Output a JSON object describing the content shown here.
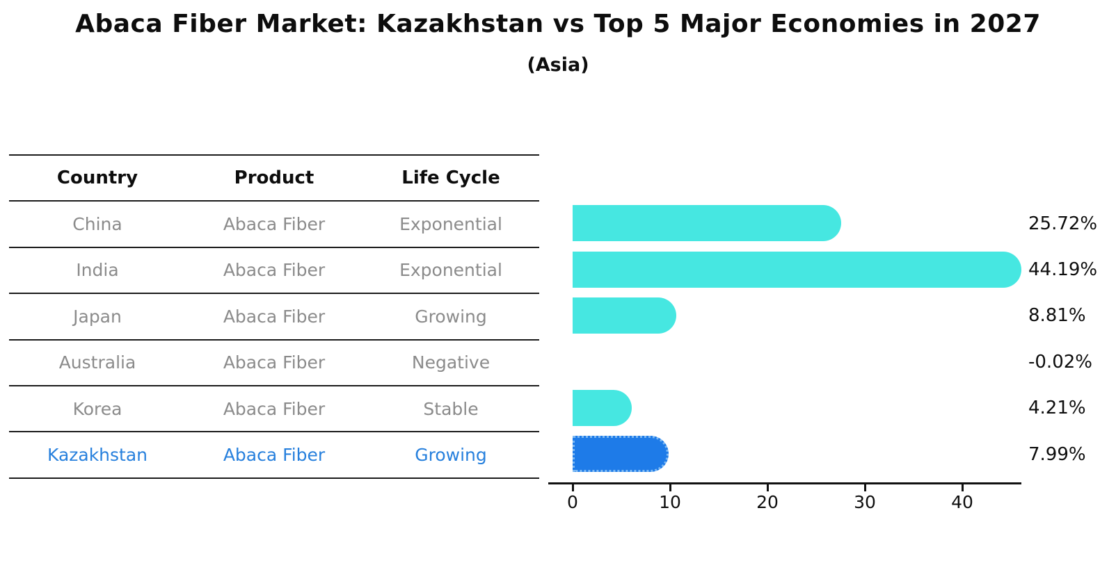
{
  "title": "Abaca Fiber Market: Kazakhstan vs Top 5 Major Economies in 2027",
  "subtitle": "(Asia)",
  "table": {
    "headers": [
      "Country",
      "Product",
      "Life Cycle"
    ],
    "rows": [
      {
        "country": "China",
        "product": "Abaca Fiber",
        "life_cycle": "Exponential",
        "highlight": false
      },
      {
        "country": "India",
        "product": "Abaca Fiber",
        "life_cycle": "Exponential",
        "highlight": false
      },
      {
        "country": "Japan",
        "product": "Abaca Fiber",
        "life_cycle": "Growing",
        "highlight": false
      },
      {
        "country": "Australia",
        "product": "Abaca Fiber",
        "life_cycle": "Negative",
        "highlight": false
      },
      {
        "country": "Korea",
        "product": "Abaca Fiber",
        "life_cycle": "Stable",
        "highlight": false
      },
      {
        "country": "Kazakhstan",
        "product": "Abaca Fiber",
        "life_cycle": "Growing",
        "highlight": true
      }
    ]
  },
  "chart_data": {
    "type": "bar",
    "orientation": "horizontal",
    "categories": [
      "China",
      "India",
      "Japan",
      "Australia",
      "Korea",
      "Kazakhstan"
    ],
    "values": [
      25.72,
      44.19,
      8.81,
      -0.02,
      4.21,
      7.99
    ],
    "value_labels": [
      "25.72%",
      "44.19%",
      "8.81%",
      "-0.02%",
      "4.21%",
      "7.99%"
    ],
    "x_ticks": [
      "0",
      "10",
      "20",
      "30",
      "40"
    ],
    "x_tick_values": [
      0,
      10,
      20,
      30,
      40
    ],
    "xlim": [
      0,
      46
    ],
    "grid": false,
    "legend": "none",
    "highlight_index": 5
  },
  "colors": {
    "bar_color": "#46E7E1",
    "highlight_bar_color": "#1E7BE8",
    "highlight_bar_border": "#7DB9F3",
    "highlight_text_color": "#2780DD",
    "row_text_color": "#8B8B8B",
    "axis_color": "#111111",
    "title_color": "#0D0D0D"
  }
}
